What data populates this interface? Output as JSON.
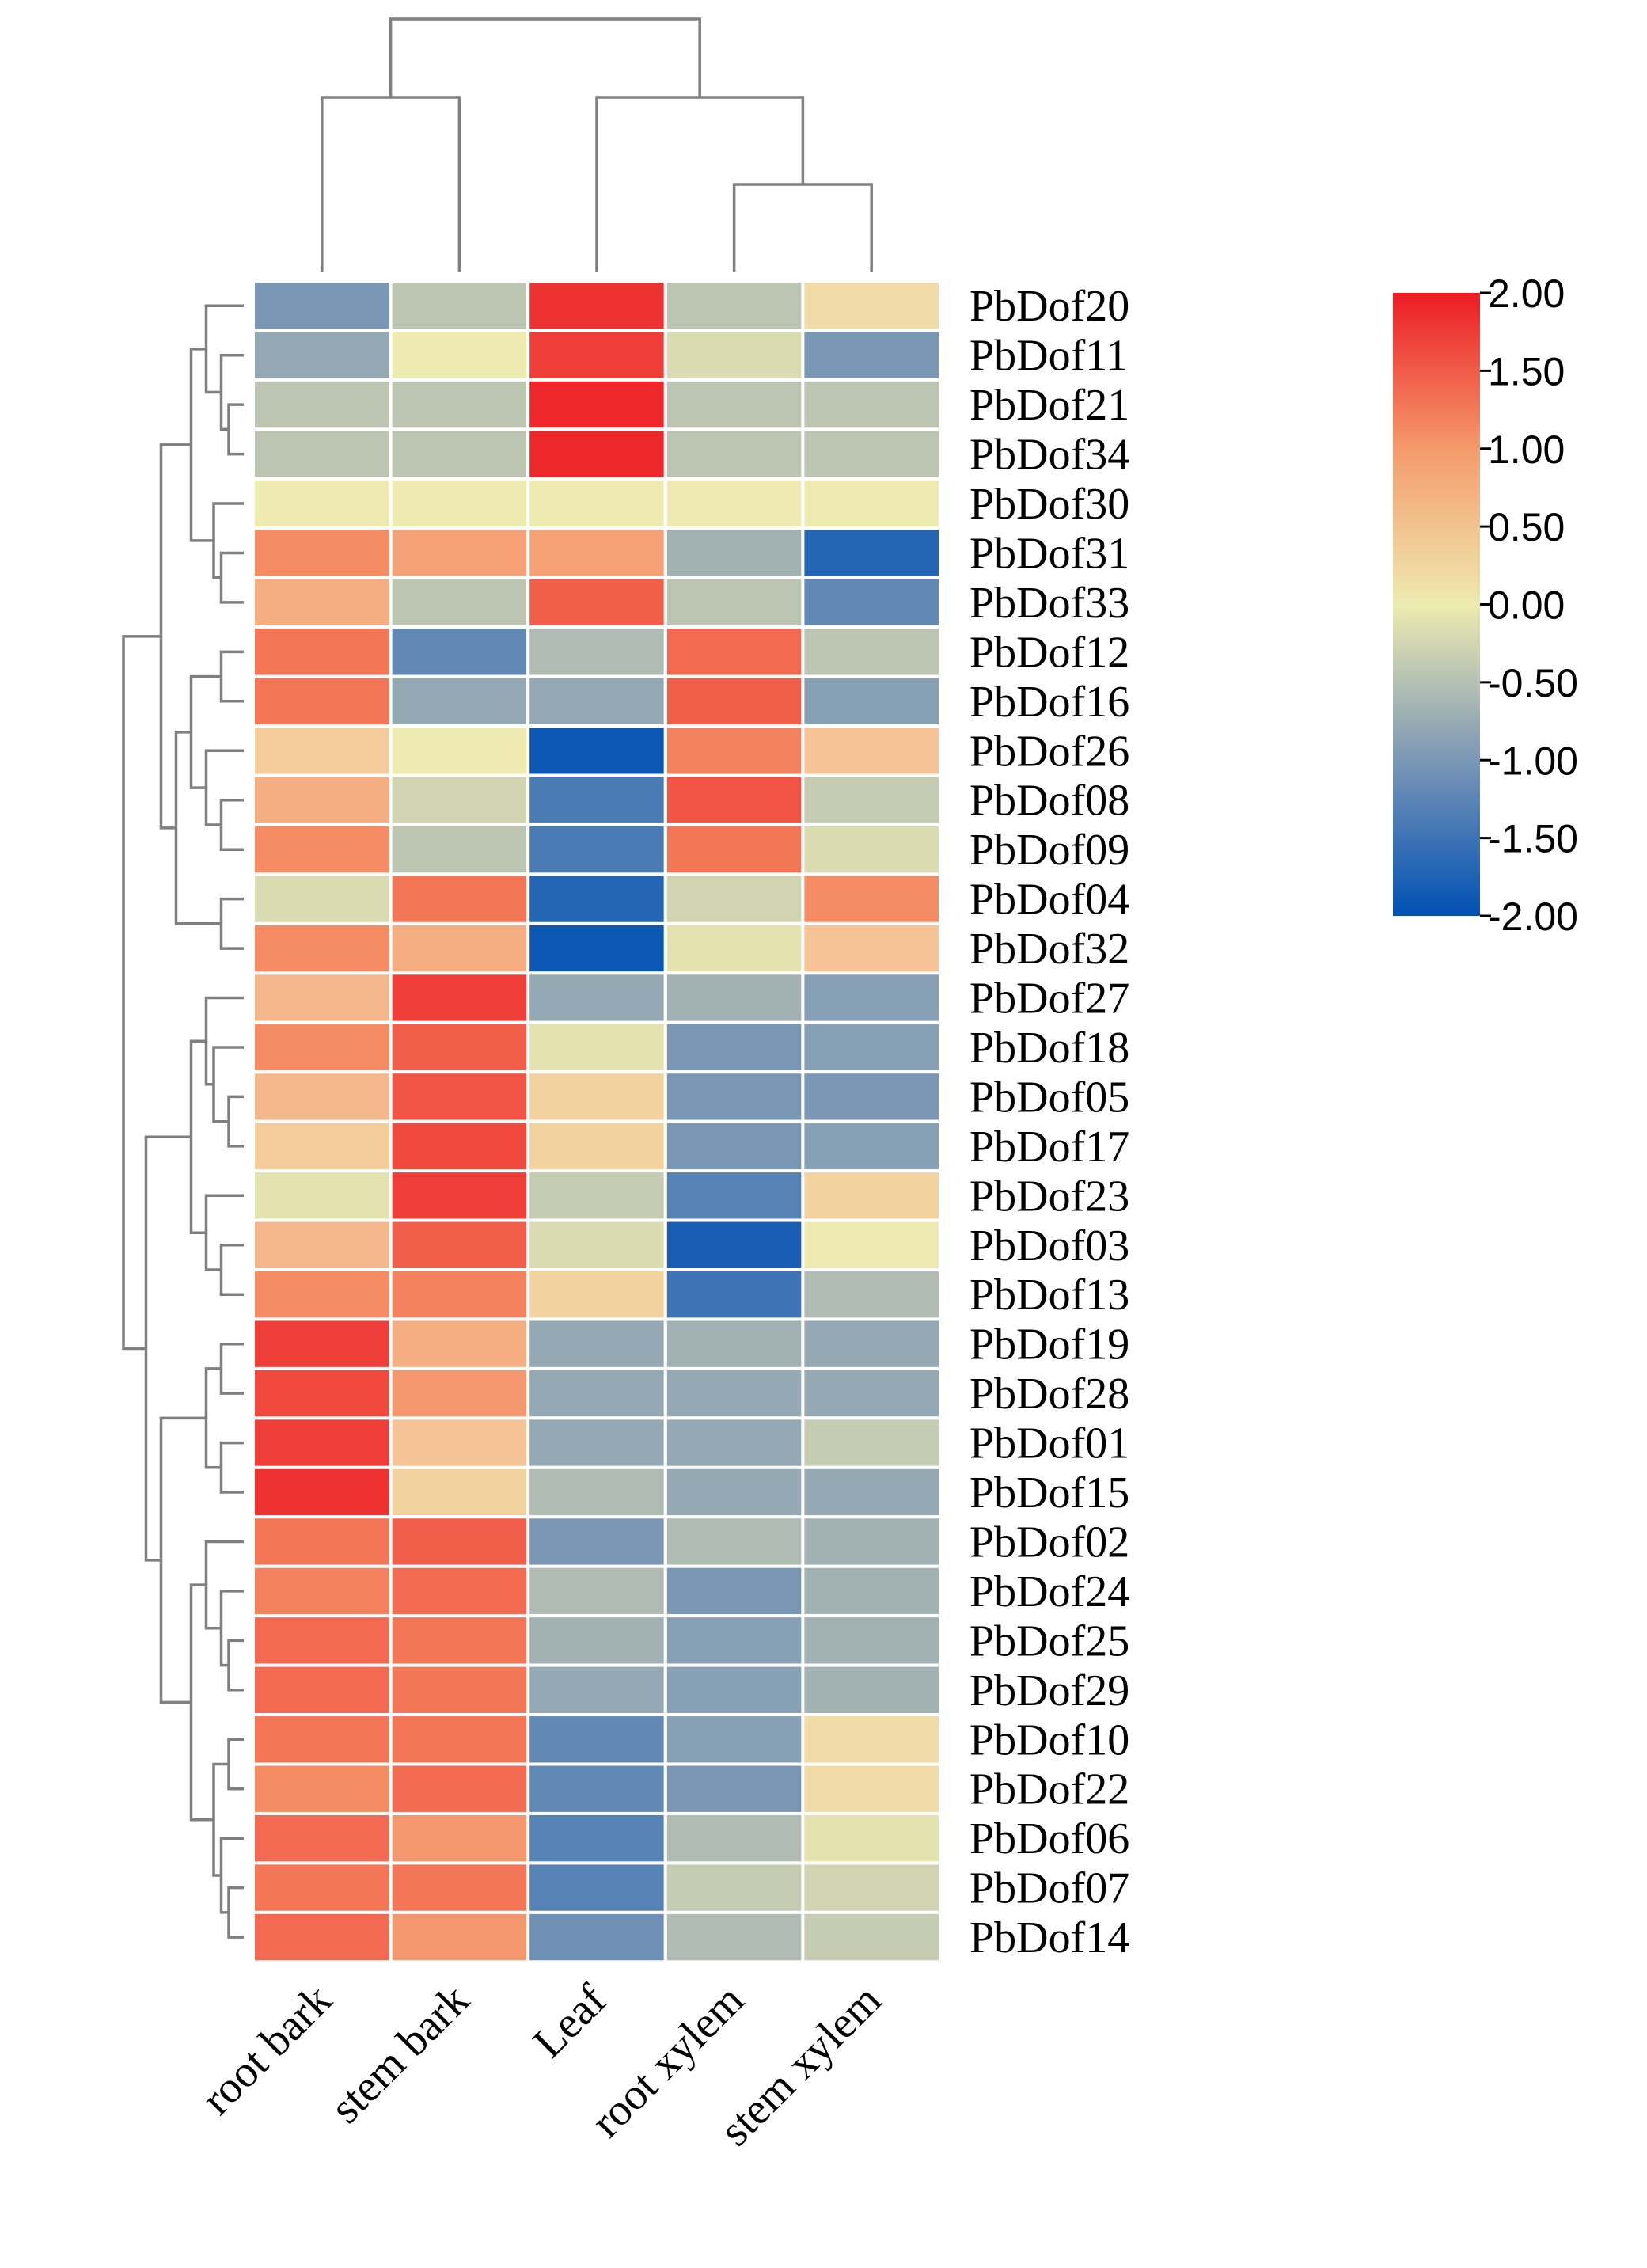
{
  "chart_data": {
    "type": "heatmap",
    "columns": [
      "root bark",
      "stem bark",
      "Leaf",
      "root xylem",
      "stem xylem"
    ],
    "rows": [
      "PbDof20",
      "PbDof11",
      "PbDof21",
      "PbDof34",
      "PbDof30",
      "PbDof31",
      "PbDof33",
      "PbDof12",
      "PbDof16",
      "PbDof26",
      "PbDof08",
      "PbDof09",
      "PbDof04",
      "PbDof32",
      "PbDof27",
      "PbDof18",
      "PbDof05",
      "PbDof17",
      "PbDof23",
      "PbDof03",
      "PbDof13",
      "PbDof19",
      "PbDof28",
      "PbDof01",
      "PbDof15",
      "PbDof02",
      "PbDof24",
      "PbDof25",
      "PbDof29",
      "PbDof10",
      "PbDof22",
      "PbDof06",
      "PbDof07",
      "PbDof14"
    ],
    "values": [
      [
        -1.0,
        -0.5,
        1.8,
        -0.5,
        0.2
      ],
      [
        -0.8,
        0.0,
        1.7,
        -0.2,
        -1.0
      ],
      [
        -0.5,
        -0.5,
        1.9,
        -0.5,
        -0.5
      ],
      [
        -0.5,
        -0.5,
        1.9,
        -0.5,
        -0.5
      ],
      [
        0.0,
        0.0,
        0.0,
        0.0,
        0.0
      ],
      [
        1.0,
        0.8,
        0.8,
        -0.7,
        -1.7
      ],
      [
        0.7,
        -0.5,
        1.4,
        -0.5,
        -1.2
      ],
      [
        1.2,
        -1.2,
        -0.6,
        1.3,
        -0.5
      ],
      [
        1.2,
        -0.8,
        -0.8,
        1.4,
        -0.9
      ],
      [
        0.4,
        0.0,
        -1.9,
        1.1,
        0.5
      ],
      [
        0.7,
        -0.3,
        -1.4,
        1.5,
        -0.4
      ],
      [
        1.0,
        -0.5,
        -1.4,
        1.2,
        -0.2
      ],
      [
        -0.2,
        1.2,
        -1.7,
        -0.3,
        1.0
      ],
      [
        1.0,
        0.7,
        -1.9,
        -0.1,
        0.5
      ],
      [
        0.6,
        1.7,
        -0.8,
        -0.7,
        -0.9
      ],
      [
        1.0,
        1.4,
        -0.1,
        -1.0,
        -0.9
      ],
      [
        0.6,
        1.5,
        0.3,
        -1.0,
        -1.0
      ],
      [
        0.4,
        1.6,
        0.3,
        -1.0,
        -0.9
      ],
      [
        -0.1,
        1.7,
        -0.4,
        -1.3,
        0.3
      ],
      [
        0.6,
        1.4,
        -0.2,
        -1.8,
        0.0
      ],
      [
        1.0,
        1.1,
        0.3,
        -1.5,
        -0.6
      ],
      [
        1.7,
        0.7,
        -0.8,
        -0.7,
        -0.8
      ],
      [
        1.6,
        0.9,
        -0.8,
        -0.8,
        -0.8
      ],
      [
        1.7,
        0.5,
        -0.8,
        -0.8,
        -0.4
      ],
      [
        1.8,
        0.3,
        -0.6,
        -0.8,
        -0.8
      ],
      [
        1.2,
        1.4,
        -1.0,
        -0.6,
        -0.7
      ],
      [
        1.1,
        1.3,
        -0.6,
        -1.0,
        -0.7
      ],
      [
        1.3,
        1.2,
        -0.7,
        -0.9,
        -0.7
      ],
      [
        1.3,
        1.2,
        -0.8,
        -0.9,
        -0.7
      ],
      [
        1.2,
        1.2,
        -1.2,
        -0.9,
        0.2
      ],
      [
        1.0,
        1.3,
        -1.2,
        -1.0,
        0.2
      ],
      [
        1.3,
        0.9,
        -1.3,
        -0.6,
        -0.1
      ],
      [
        1.2,
        1.2,
        -1.3,
        -0.4,
        -0.3
      ],
      [
        1.3,
        0.9,
        -1.1,
        -0.6,
        -0.4
      ]
    ],
    "colorbar": {
      "min": -2.0,
      "max": 2.0,
      "tick_labels": [
        "2.00",
        "1.50",
        "1.00",
        "0.50",
        "0.00",
        "-0.50",
        "-1.00",
        "-1.50",
        "-2.00"
      ],
      "color_low": "#0050b4",
      "color_mid": "#eeebb0",
      "color_high": "#ec1c24"
    },
    "grid_line_color": "#ffffff",
    "dendrogram_color": "#7f7f7f",
    "legend_placement": "top-right"
  }
}
